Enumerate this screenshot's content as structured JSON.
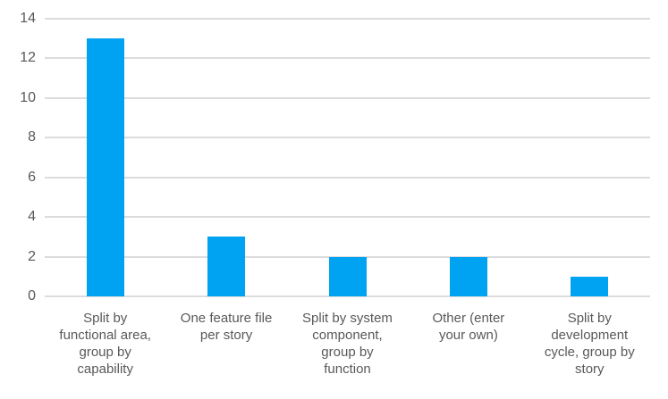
{
  "chart_data": {
    "type": "bar",
    "title": "",
    "xlabel": "",
    "ylabel": "",
    "categories": [
      "Split by functional area, group by capability",
      "One feature file per story",
      "Split by system component, group by function",
      "Other (enter your own)",
      "Split by development cycle, group by story"
    ],
    "categories_wrapped": [
      "Split by\nfunctional area,\ngroup by\ncapability",
      "One feature file\nper story",
      "Split by system\ncomponent,\ngroup by\nfunction",
      "Other (enter\nyour own)",
      "Split by\ndevelopment\ncycle, group by\nstory"
    ],
    "values": [
      13,
      3,
      2,
      2,
      1
    ],
    "ylim": [
      0,
      14
    ],
    "yticks": [
      0,
      2,
      4,
      6,
      8,
      10,
      12,
      14
    ],
    "grid": "horizontal",
    "legend": "none",
    "bar_color": "#00a2f2",
    "gridline_color": "#dcdcdc",
    "text_color": "#595959"
  }
}
